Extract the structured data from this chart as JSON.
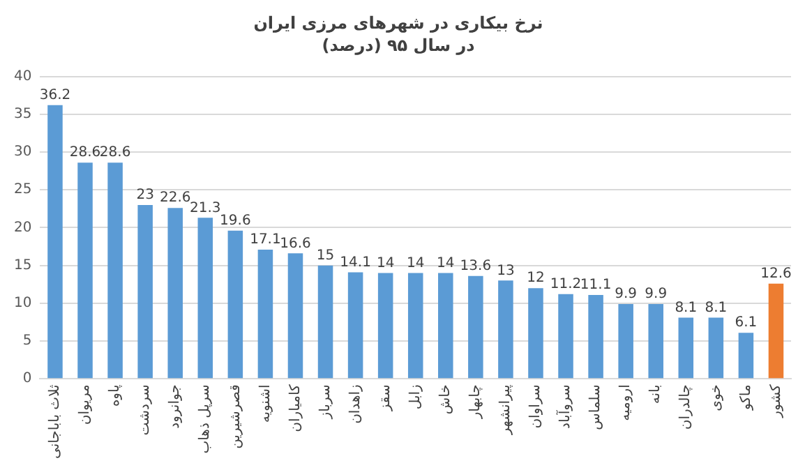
{
  "chart_data": {
    "type": "bar",
    "title": "نرخ بیکاری در شهرهای مرزی ایران",
    "subtitle": "در سال ۹۵ (درصد)",
    "categories": [
      "ثلاث باباجانی",
      "مریوان",
      "پاوه",
      "سردشت",
      "جوانرود",
      "سرپل ذهاب",
      "قصرشیرین",
      "اشنویه",
      "کامیاران",
      "سرباز",
      "زاهدان",
      "سقز",
      "زابل",
      "خاش",
      "چابهار",
      "پیرانشهر",
      "سراوان",
      "سروآباد",
      "سلماس",
      "ارومیه",
      "بانه",
      "چالدران",
      "خوی",
      "ماکو",
      "کشور"
    ],
    "values": [
      36.2,
      28.6,
      28.6,
      23,
      22.6,
      21.3,
      19.6,
      17.1,
      16.6,
      15,
      14.1,
      14,
      14,
      14,
      13.6,
      13,
      12,
      11.2,
      11.1,
      9.9,
      9.9,
      8.1,
      8.1,
      6.1,
      12.6
    ],
    "colors": [
      "#5b9bd5",
      "#5b9bd5",
      "#5b9bd5",
      "#5b9bd5",
      "#5b9bd5",
      "#5b9bd5",
      "#5b9bd5",
      "#5b9bd5",
      "#5b9bd5",
      "#5b9bd5",
      "#5b9bd5",
      "#5b9bd5",
      "#5b9bd5",
      "#5b9bd5",
      "#5b9bd5",
      "#5b9bd5",
      "#5b9bd5",
      "#5b9bd5",
      "#5b9bd5",
      "#5b9bd5",
      "#5b9bd5",
      "#5b9bd5",
      "#5b9bd5",
      "#5b9bd5",
      "#ed7d31"
    ],
    "ylim": [
      0,
      40
    ],
    "yticks": [
      0,
      5,
      10,
      15,
      20,
      25,
      30,
      35,
      40
    ],
    "grid": "y",
    "data_labels": true
  }
}
